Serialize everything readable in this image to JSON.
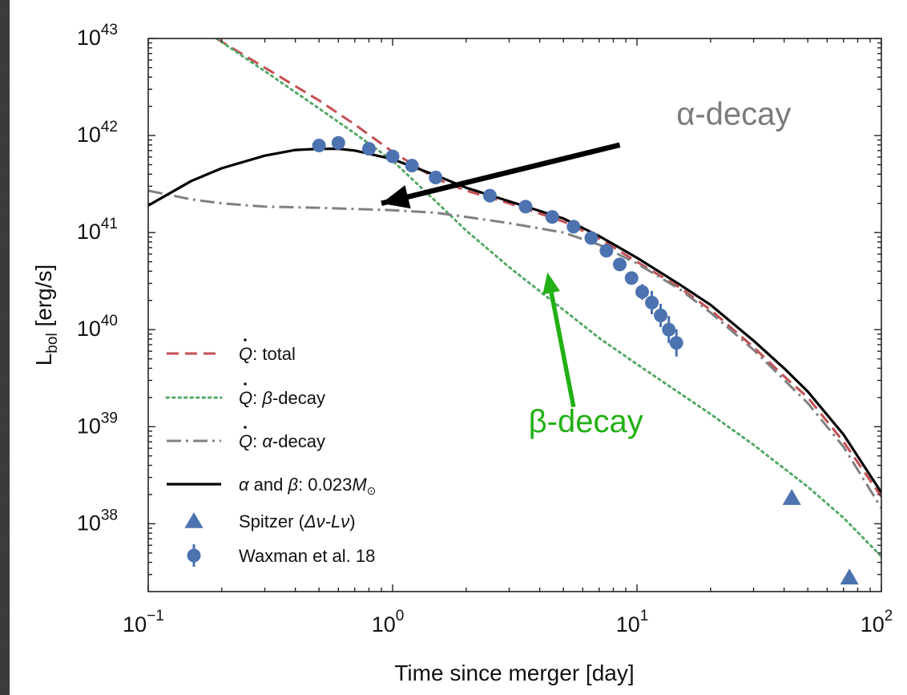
{
  "colors": {
    "total": "#c44e52",
    "beta": "#55a868",
    "alpha": "#808080",
    "combined": "#000000",
    "data": "#4c72b0",
    "alpha_annotation": "#7a7a7a",
    "beta_annotation": "#22b014"
  },
  "chart_data": {
    "type": "line",
    "xlabel": "Time since merger [day]",
    "ylabel": {
      "main": "L",
      "sub": "bol",
      "rest": " [erg/s]"
    },
    "xscale": "log",
    "yscale": "log",
    "xlim": [
      0.1,
      100
    ],
    "ylim": [
      2e+37,
      1e+43
    ],
    "x_ticks": [
      {
        "value": 0.1,
        "base": "10",
        "exp": "−1"
      },
      {
        "value": 1,
        "base": "10",
        "exp": "0"
      },
      {
        "value": 10,
        "base": "10",
        "exp": "1"
      },
      {
        "value": 100,
        "base": "10",
        "exp": "2"
      }
    ],
    "y_ticks": [
      {
        "value": 1e+38,
        "base": "10",
        "exp": "38"
      },
      {
        "value": 1e+39,
        "base": "10",
        "exp": "39"
      },
      {
        "value": 1e+40,
        "base": "10",
        "exp": "40"
      },
      {
        "value": 1e+41,
        "base": "10",
        "exp": "41"
      },
      {
        "value": 1e+42,
        "base": "10",
        "exp": "42"
      },
      {
        "value": 1e+43,
        "base": "10",
        "exp": "43"
      }
    ],
    "grid": false,
    "legend_position": "lower-left",
    "series": [
      {
        "key": "total",
        "style": "dashed",
        "legend_parts": [
          "Q",
          ": total"
        ],
        "points": [
          [
            0.19,
            1e+43
          ],
          [
            0.3,
            5e+42
          ],
          [
            0.5,
            2.3e+42
          ],
          [
            0.7,
            1.3e+42
          ],
          [
            1.0,
            6.8e+41
          ],
          [
            1.5,
            3.6e+41
          ],
          [
            2.0,
            2.7e+41
          ],
          [
            3.0,
            2e+41
          ],
          [
            5.0,
            1.3e+41
          ],
          [
            7.0,
            8.7e+40
          ],
          [
            10,
            5e+40
          ],
          [
            15,
            2.7e+40
          ],
          [
            20,
            1.6e+40
          ],
          [
            30,
            6.6e+39
          ],
          [
            40,
            3.3e+39
          ],
          [
            50,
            2e+39
          ],
          [
            70,
            7e+38
          ],
          [
            100,
            1.9e+38
          ]
        ]
      },
      {
        "key": "beta",
        "style": "dotted",
        "legend_parts": [
          "Q",
          ": ",
          "β",
          "-decay"
        ],
        "points": [
          [
            0.19,
            1e+43
          ],
          [
            0.3,
            4.6e+42
          ],
          [
            0.5,
            1.9e+42
          ],
          [
            0.7,
            1.05e+42
          ],
          [
            1.0,
            5.5e+41
          ],
          [
            1.5,
            2.1e+41
          ],
          [
            2.0,
            1.05e+41
          ],
          [
            3.0,
            4.4e+40
          ],
          [
            5.0,
            1.6e+40
          ],
          [
            7.0,
            8.2e+39
          ],
          [
            10,
            4.4e+39
          ],
          [
            20,
            1.35e+39
          ],
          [
            30,
            6.5e+38
          ],
          [
            50,
            2.4e+38
          ],
          [
            70,
            1.15e+38
          ],
          [
            100,
            4.6e+37
          ]
        ]
      },
      {
        "key": "alpha",
        "style": "dashdot",
        "legend_parts": [
          "Q",
          ": ",
          "α",
          "-decay"
        ],
        "points": [
          [
            0.1,
            2.7e+41
          ],
          [
            0.15,
            2.2e+41
          ],
          [
            0.2,
            2e+41
          ],
          [
            0.3,
            1.85e+41
          ],
          [
            0.5,
            1.8e+41
          ],
          [
            0.7,
            1.75e+41
          ],
          [
            1.0,
            1.7e+41
          ],
          [
            1.5,
            1.6e+41
          ],
          [
            2.0,
            1.45e+41
          ],
          [
            3.0,
            1.25e+41
          ],
          [
            5.0,
            1e+41
          ],
          [
            7.0,
            7.5e+40
          ],
          [
            10,
            4.8e+40
          ],
          [
            15,
            2.6e+40
          ],
          [
            20,
            1.5e+40
          ],
          [
            30,
            6.2e+39
          ],
          [
            50,
            1.75e+39
          ],
          [
            70,
            6.2e+38
          ],
          [
            100,
            1.45e+38
          ]
        ]
      },
      {
        "key": "combined",
        "style": "solid",
        "legend_parts": [
          "α",
          " and ",
          "β",
          ": 0.023",
          "M",
          "⊙"
        ],
        "points": [
          [
            0.1,
            1.9e+41
          ],
          [
            0.15,
            3.4e+41
          ],
          [
            0.2,
            4.6e+41
          ],
          [
            0.3,
            6.2e+41
          ],
          [
            0.4,
            7.1e+41
          ],
          [
            0.5,
            7.3e+41
          ],
          [
            0.6,
            7.3e+41
          ],
          [
            0.7,
            7e+41
          ],
          [
            1.0,
            5.7e+41
          ],
          [
            1.5,
            3.9e+41
          ],
          [
            2.0,
            2.9e+41
          ],
          [
            3.0,
            2.1e+41
          ],
          [
            5.0,
            1.4e+41
          ],
          [
            7.0,
            9.2e+40
          ],
          [
            10,
            5.5e+40
          ],
          [
            15,
            2.9e+40
          ],
          [
            20,
            1.8e+40
          ],
          [
            30,
            7.7e+39
          ],
          [
            40,
            4e+39
          ],
          [
            50,
            2.3e+39
          ],
          [
            70,
            8.3e+38
          ],
          [
            100,
            2.1e+38
          ]
        ]
      }
    ],
    "scatter_series": [
      {
        "key": "spitzer",
        "marker": "triangle",
        "legend_parts": [
          "Spitzer (",
          "Δν-Lν",
          ")"
        ],
        "points": [
          [
            43,
            1.85e+38
          ],
          [
            74,
            2.8e+37
          ]
        ]
      },
      {
        "key": "waxman",
        "marker": "circle",
        "legend_parts": [
          "Waxman et al. 18"
        ],
        "points": [
          {
            "x": 0.5,
            "y": 7.9e+41,
            "err": 0
          },
          {
            "x": 0.6,
            "y": 8.4e+41,
            "err": 0.04
          },
          {
            "x": 0.8,
            "y": 7.3e+41,
            "err": 0
          },
          {
            "x": 1.0,
            "y": 6.1e+41,
            "err": 0
          },
          {
            "x": 1.2,
            "y": 4.9e+41,
            "err": 0
          },
          {
            "x": 1.5,
            "y": 3.7e+41,
            "err": 0
          },
          {
            "x": 2.5,
            "y": 2.4e+41,
            "err": 0
          },
          {
            "x": 3.5,
            "y": 1.85e+41,
            "err": 0
          },
          {
            "x": 4.5,
            "y": 1.45e+41,
            "err": 0
          },
          {
            "x": 5.5,
            "y": 1.15e+41,
            "err": 0
          },
          {
            "x": 6.5,
            "y": 8.8e+40,
            "err": 0
          },
          {
            "x": 7.5,
            "y": 6.5e+40,
            "err": 0
          },
          {
            "x": 8.5,
            "y": 4.7e+40,
            "err": 0
          },
          {
            "x": 9.5,
            "y": 3.4e+40,
            "err": 0
          },
          {
            "x": 10.5,
            "y": 2.45e+40,
            "err": 0.08
          },
          {
            "x": 11.5,
            "y": 1.9e+40,
            "err": 0.12
          },
          {
            "x": 12.5,
            "y": 1.4e+40,
            "err": 0.12
          },
          {
            "x": 13.5,
            "y": 1e+40,
            "err": 0.14
          },
          {
            "x": 14.5,
            "y": 7.3e+39,
            "err": 0.14
          }
        ]
      }
    ],
    "annotations": [
      {
        "key": "alpha_note",
        "text": "α-decay",
        "text_at": [
          14.5,
          1.3e+42
        ],
        "arrow_from": [
          8.5,
          8e+41
        ],
        "arrow_to": [
          0.9,
          2e+41
        ]
      },
      {
        "key": "beta_note",
        "text": "β-decay",
        "text_at": [
          3.6,
          8.8e+38
        ],
        "arrow_from": [
          5.5,
          1.6e+39
        ],
        "arrow_to": [
          4.3,
          3.9e+40
        ]
      }
    ]
  }
}
